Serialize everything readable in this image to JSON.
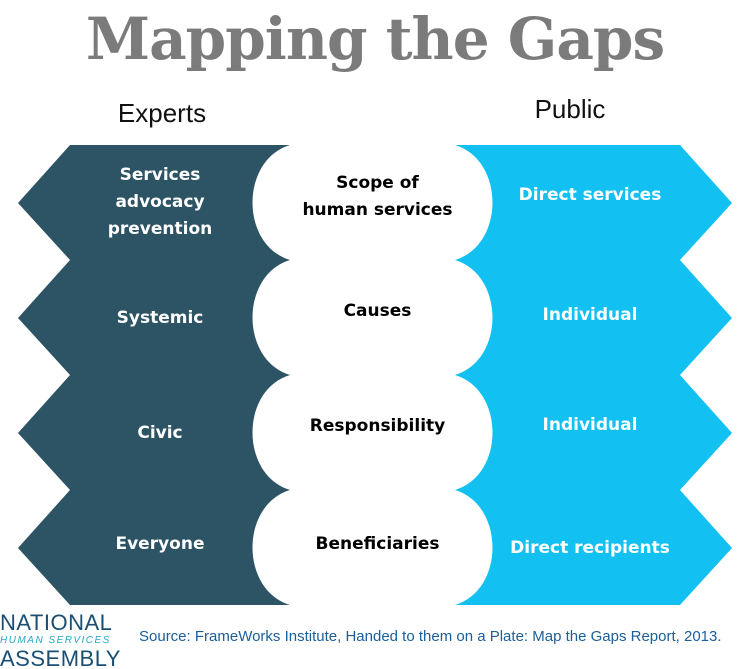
{
  "title": "Mapping the Gaps",
  "headers": {
    "experts": "Experts",
    "public": "Public"
  },
  "colors": {
    "experts_fill": "#2d5465",
    "public_fill": "#12c1f1",
    "title_color": "#7b7b7b",
    "source_color": "#1a5e9a"
  },
  "rows": [
    {
      "expert": "Services\nadvocacy\nprevention",
      "topic": "Scope of\nhuman services",
      "public": "Direct services"
    },
    {
      "expert": "Systemic",
      "topic": "Causes",
      "public": "Individual"
    },
    {
      "expert": "Civic",
      "topic": "Responsibility",
      "public": "Individual"
    },
    {
      "expert": "Everyone",
      "topic": "Beneficiaries",
      "public": "Direct recipients"
    }
  ],
  "logo": {
    "line1": "NATIONAL",
    "line2": "HUMAN SERVICES",
    "line3": "ASSEMBLY"
  },
  "source": "Source: FrameWorks Institute, Handed to them on a Plate: Map the Gaps Report, 2013."
}
